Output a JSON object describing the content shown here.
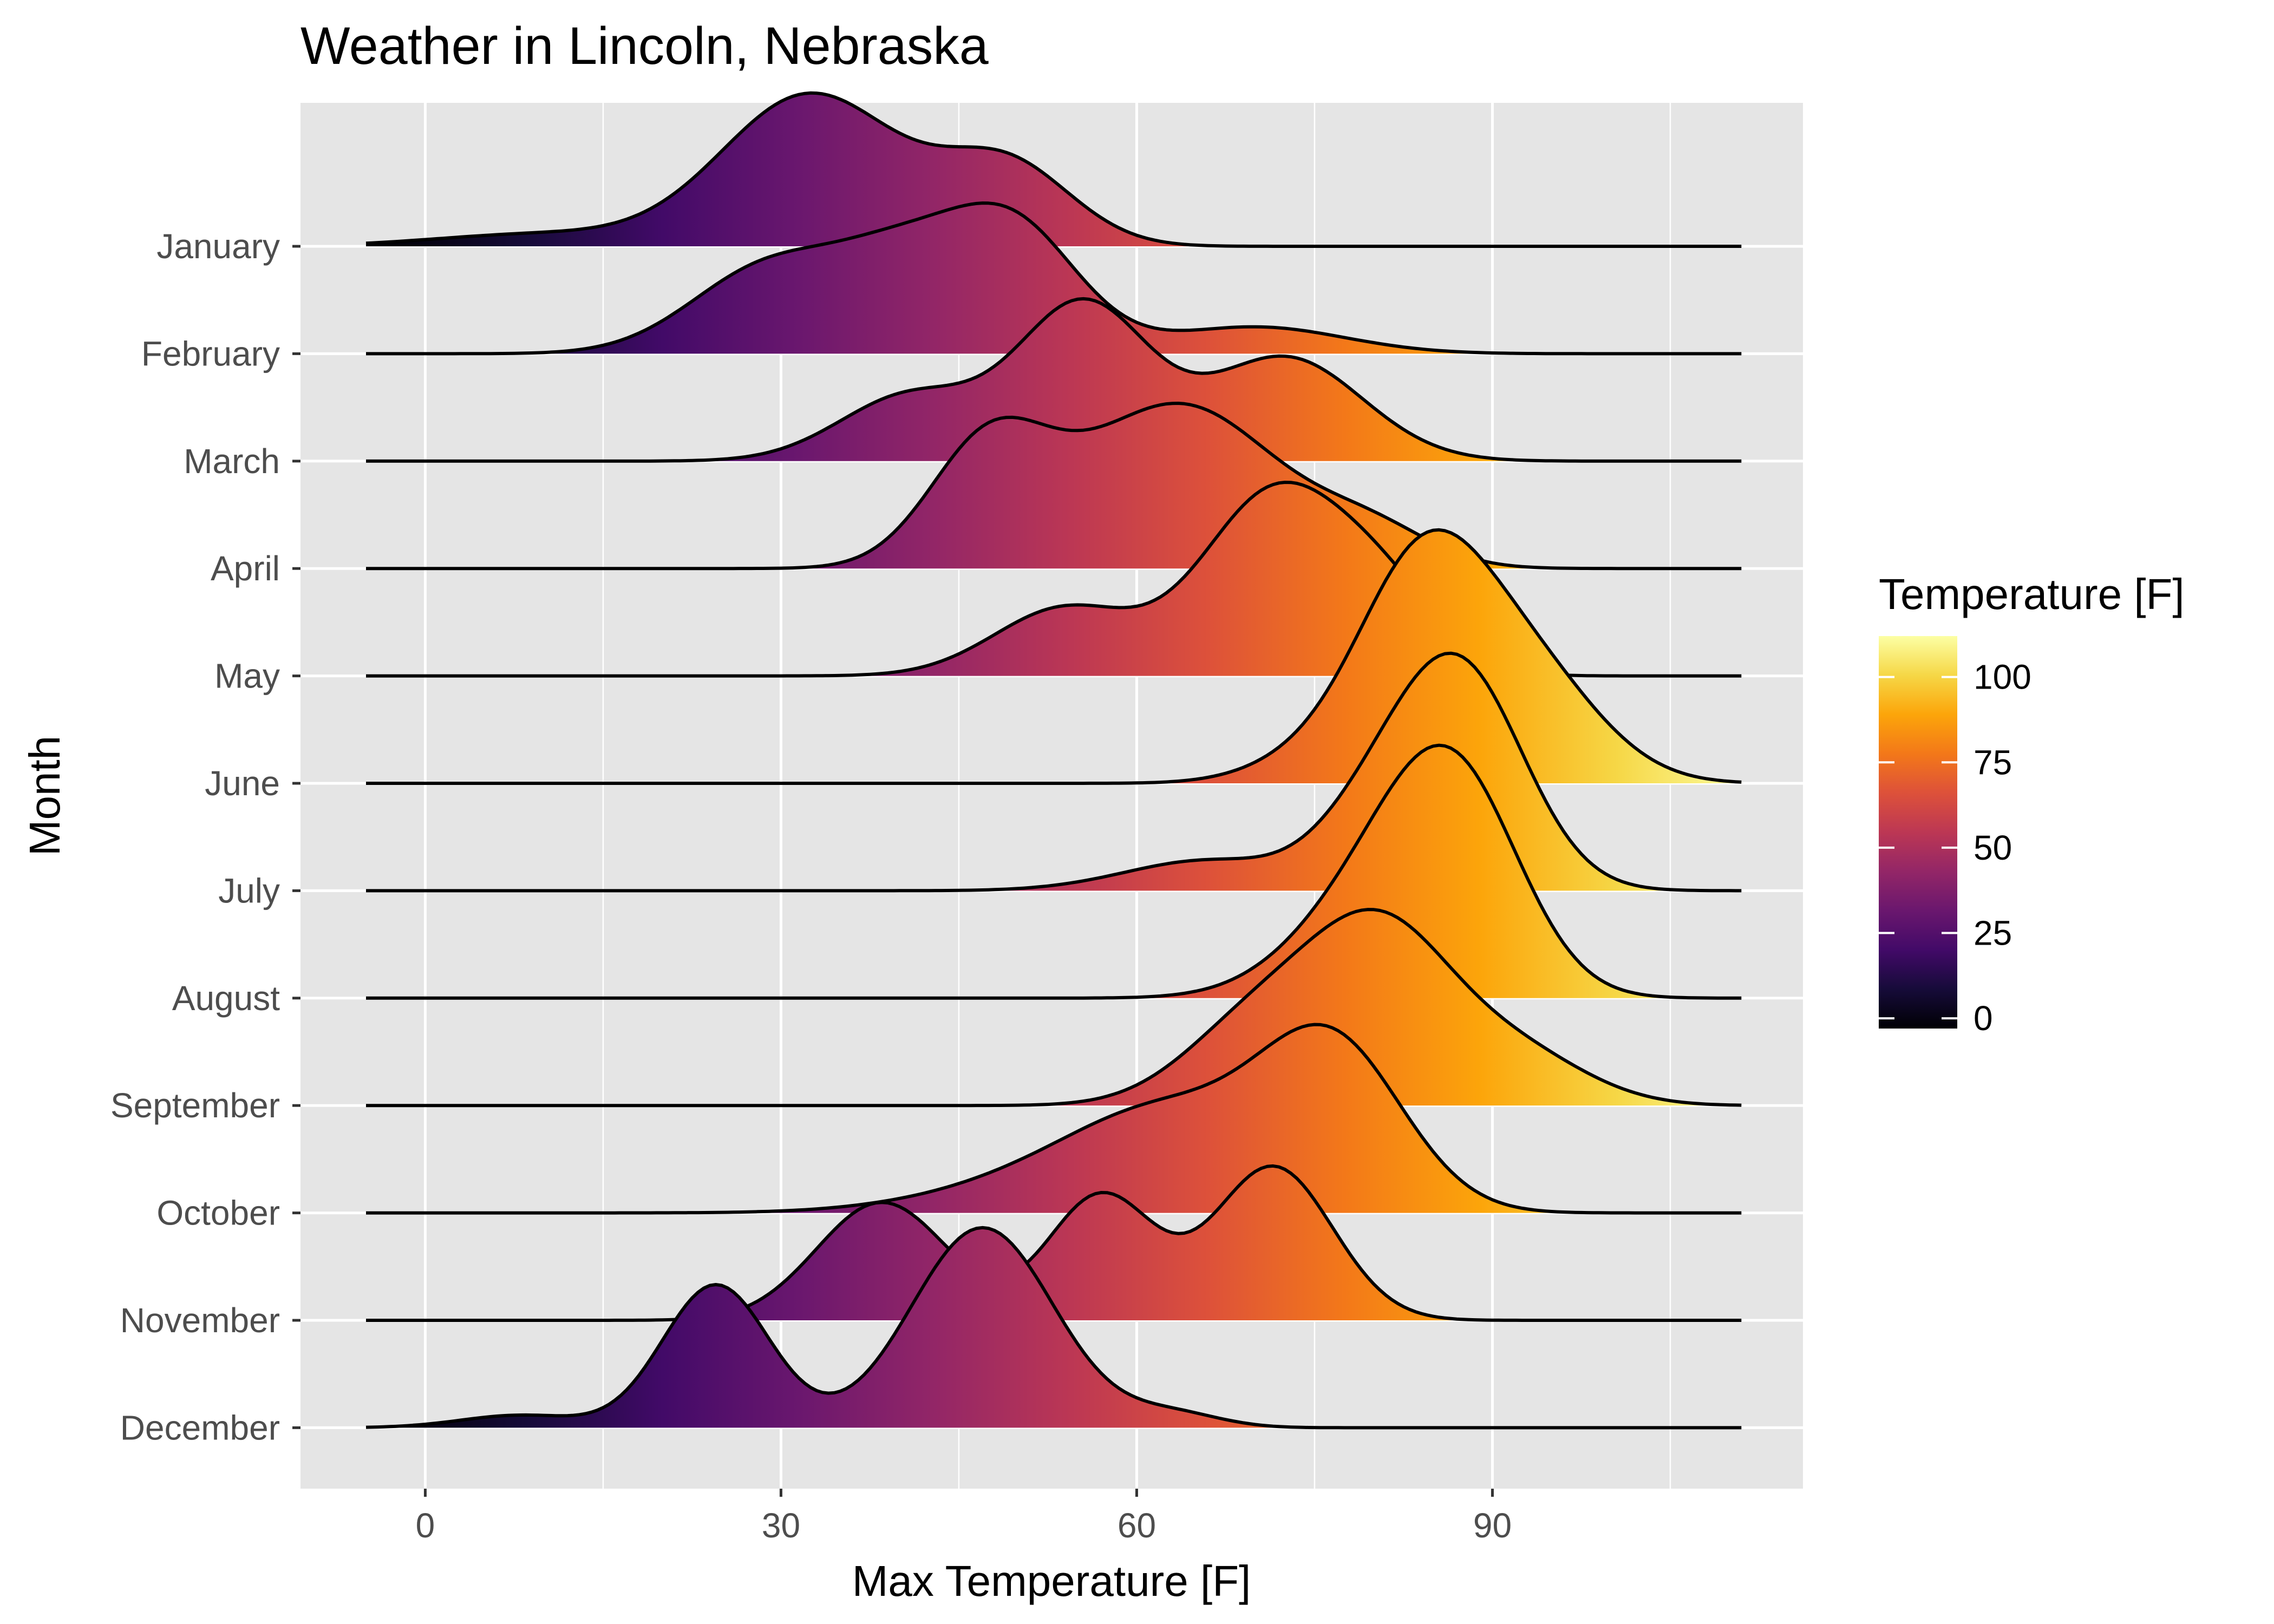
{
  "chart_data": {
    "type": "ridgeline",
    "title": "Weather in Lincoln, Nebraska",
    "xlabel": "Max Temperature [F]",
    "ylabel": "Month",
    "xlim": [
      -10.5,
      116
    ],
    "xticks": [
      0,
      30,
      60,
      90
    ],
    "x_grid_start": -5,
    "x_grid_end": 111,
    "colorscale": "inferno",
    "legend": {
      "title": "Temperature [F]",
      "placement": "right",
      "range": [
        -3,
        112
      ],
      "ticks": [
        0,
        25,
        50,
        75,
        100
      ]
    },
    "grid": true,
    "series": [
      {
        "name": "January",
        "peaks": [
          {
            "mu": 10,
            "sd": 9,
            "h": 0.07
          },
          {
            "mu": 32.5,
            "sd": 7.5,
            "h": 0.85
          },
          {
            "mu": 49,
            "sd": 5.5,
            "h": 0.45
          }
        ]
      },
      {
        "name": "February",
        "peaks": [
          {
            "mu": 29,
            "sd": 6.5,
            "h": 0.48
          },
          {
            "mu": 40,
            "sd": 5.5,
            "h": 0.45
          },
          {
            "mu": 49.5,
            "sd": 5.5,
            "h": 0.7
          },
          {
            "mu": 70,
            "sd": 7.5,
            "h": 0.15
          }
        ]
      },
      {
        "name": "March",
        "peaks": [
          {
            "mu": 41,
            "sd": 6,
            "h": 0.37
          },
          {
            "mu": 55.5,
            "sd": 5.5,
            "h": 0.87
          },
          {
            "mu": 72.5,
            "sd": 6.5,
            "h": 0.58
          }
        ]
      },
      {
        "name": "April",
        "peaks": [
          {
            "mu": 47.5,
            "sd": 5,
            "h": 0.66
          },
          {
            "mu": 63.5,
            "sd": 8.5,
            "h": 0.92
          },
          {
            "mu": 80,
            "sd": 5,
            "h": 0.18
          }
        ]
      },
      {
        "name": "May",
        "peaks": [
          {
            "mu": 54,
            "sd": 6,
            "h": 0.38
          },
          {
            "mu": 71.5,
            "sd": 6,
            "h": 1.0
          },
          {
            "mu": 81,
            "sd": 5,
            "h": 0.4
          }
        ]
      },
      {
        "name": "June",
        "peaks": [
          {
            "mu": 74,
            "sd": 5,
            "h": 0.1
          },
          {
            "mu": 84,
            "sd": 5.5,
            "h": 1.18
          },
          {
            "mu": 93,
            "sd": 6,
            "h": 0.6
          }
        ]
      },
      {
        "name": "July",
        "peaks": [
          {
            "mu": 66,
            "sd": 7,
            "h": 0.17
          },
          {
            "mu": 79,
            "sd": 4.5,
            "h": 0.25
          },
          {
            "mu": 87,
            "sd": 5.5,
            "h": 1.27
          }
        ]
      },
      {
        "name": "August",
        "peaks": [
          {
            "mu": 80,
            "sd": 6.5,
            "h": 0.55
          },
          {
            "mu": 87,
            "sd": 5.5,
            "h": 1.07
          }
        ]
      },
      {
        "name": "September",
        "peaks": [
          {
            "mu": 70,
            "sd": 6,
            "h": 0.45
          },
          {
            "mu": 80.5,
            "sd": 6,
            "h": 0.95
          },
          {
            "mu": 92,
            "sd": 6,
            "h": 0.28
          }
        ]
      },
      {
        "name": "October",
        "peaks": [
          {
            "mu": 54,
            "sd": 10,
            "h": 0.2
          },
          {
            "mu": 63.5,
            "sd": 8,
            "h": 0.45
          },
          {
            "mu": 76.5,
            "sd": 6,
            "h": 0.9
          }
        ]
      },
      {
        "name": "November",
        "peaks": [
          {
            "mu": 38.5,
            "sd": 5.5,
            "h": 0.66
          },
          {
            "mu": 57,
            "sd": 4.5,
            "h": 0.7
          },
          {
            "mu": 71.5,
            "sd": 5,
            "h": 0.86
          }
        ]
      },
      {
        "name": "December",
        "peaks": [
          {
            "mu": 8,
            "sd": 5,
            "h": 0.07
          },
          {
            "mu": 24.5,
            "sd": 4.5,
            "h": 0.8
          },
          {
            "mu": 47,
            "sd": 6,
            "h": 1.12
          },
          {
            "mu": 63,
            "sd": 4,
            "h": 0.08
          }
        ]
      }
    ]
  }
}
